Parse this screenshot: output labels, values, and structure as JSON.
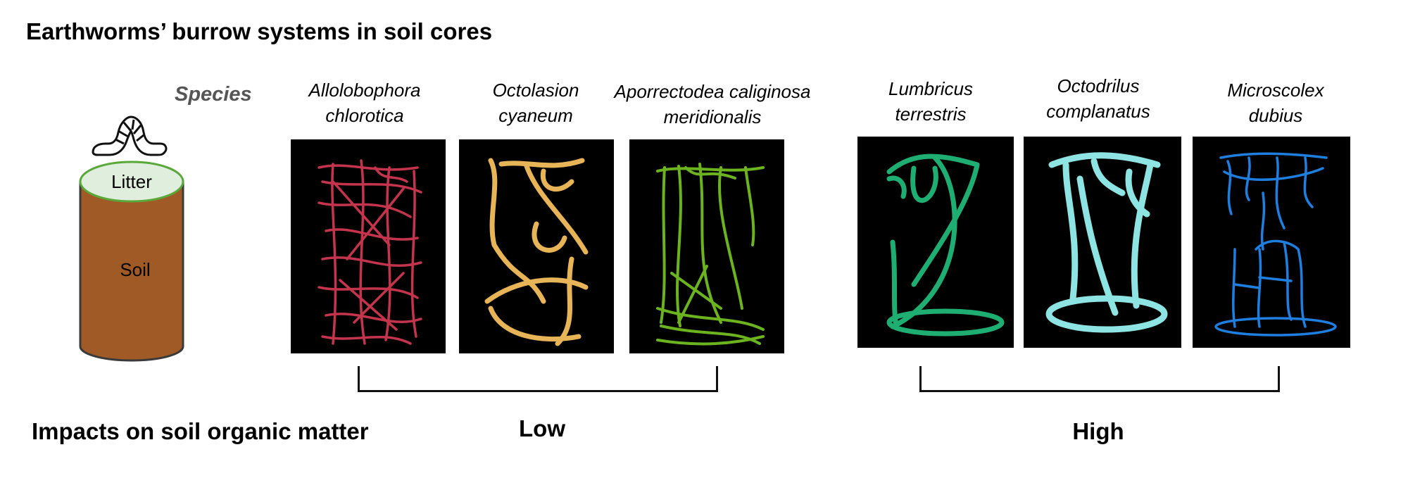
{
  "title": "Earthworms’ burrow systems in soil cores",
  "species_label": "Species",
  "core_diagram": {
    "litter_label": "Litter",
    "soil_label": "Soil",
    "colors": {
      "litter": "#dfeedd",
      "litter_edge": "#5aa83a",
      "soil": "#a05a26"
    },
    "icon": "earthworm-icon"
  },
  "species": [
    {
      "line1": "Allolobophora",
      "line2": "chlorotica",
      "color": "#c4344d"
    },
    {
      "line1": "Octolasion",
      "line2": "cyaneum",
      "color": "#e8b458"
    },
    {
      "line1": "Aporrectodea caliginosa",
      "line2": "meridionalis",
      "color": "#6cb320"
    },
    {
      "line1": "Lumbricus",
      "line2": "terrestris",
      "color": "#1fae72"
    },
    {
      "line1": "Octodrilus",
      "line2": "complanatus",
      "color": "#8ee3e3"
    },
    {
      "line1": "Microscolex",
      "line2": "dubius",
      "color": "#1e7fe0"
    }
  ],
  "impact_label": "Impacts on soil organic matter",
  "groups": [
    {
      "label": "Low",
      "species_count": 3
    },
    {
      "label": "High",
      "species_count": 3
    }
  ]
}
